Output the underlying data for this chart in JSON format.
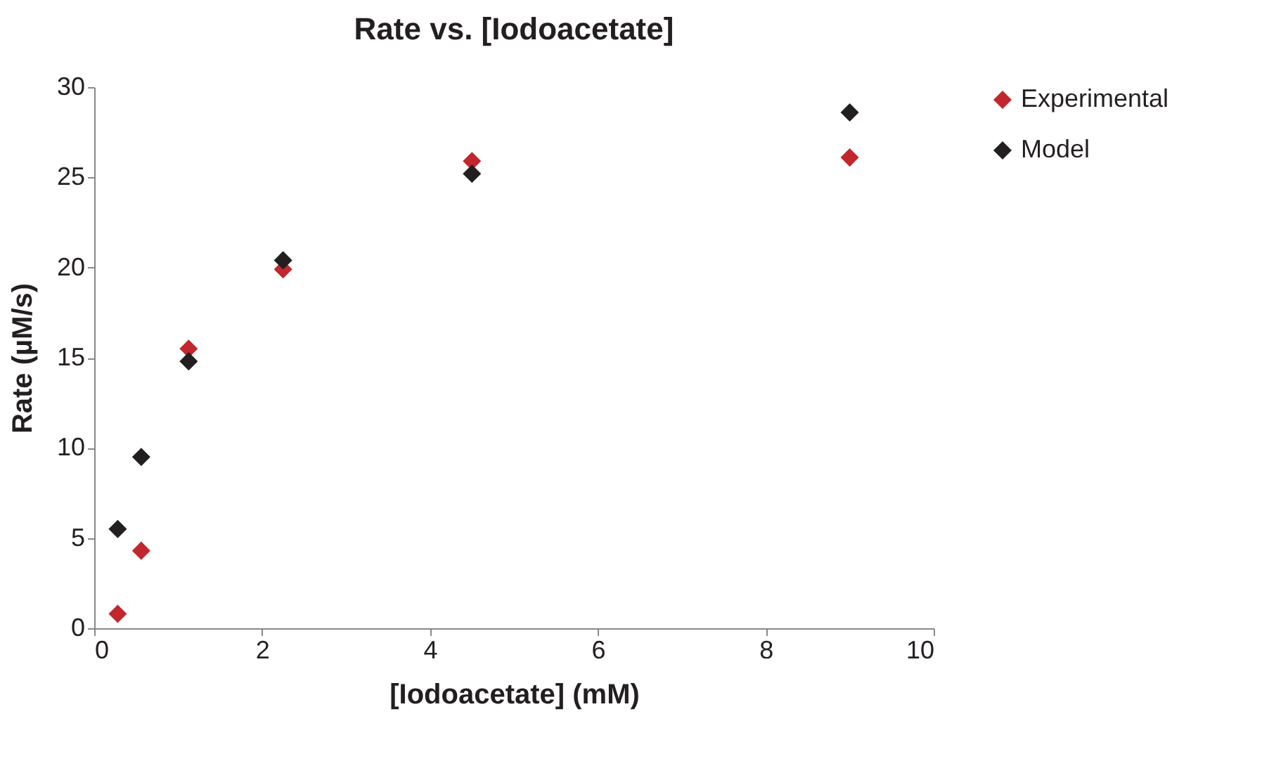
{
  "chart_data": {
    "type": "scatter",
    "title": "Rate vs. [Iodoacetate]",
    "xlabel": "[Iodoacetate] (mM)",
    "ylabel": "Rate (µM/s)",
    "x": [
      0.28,
      0.56,
      1.125,
      2.25,
      4.5,
      9
    ],
    "series": [
      {
        "name": "Experimental",
        "color": "#c1272d",
        "values": [
          0.8,
          4.3,
          15.5,
          19.9,
          25.9,
          26.1
        ]
      },
      {
        "name": "Model",
        "color": "#231f20",
        "values": [
          5.5,
          9.5,
          14.8,
          20.4,
          25.2,
          28.6
        ]
      }
    ],
    "xlim": [
      0,
      10
    ],
    "xticks": [
      0,
      2,
      4,
      6,
      8,
      10
    ],
    "ylim": [
      0,
      30
    ],
    "yticks": [
      0,
      5,
      10,
      15,
      20,
      25,
      30
    ],
    "grid": false,
    "legend": "right",
    "marker": "diamond"
  }
}
